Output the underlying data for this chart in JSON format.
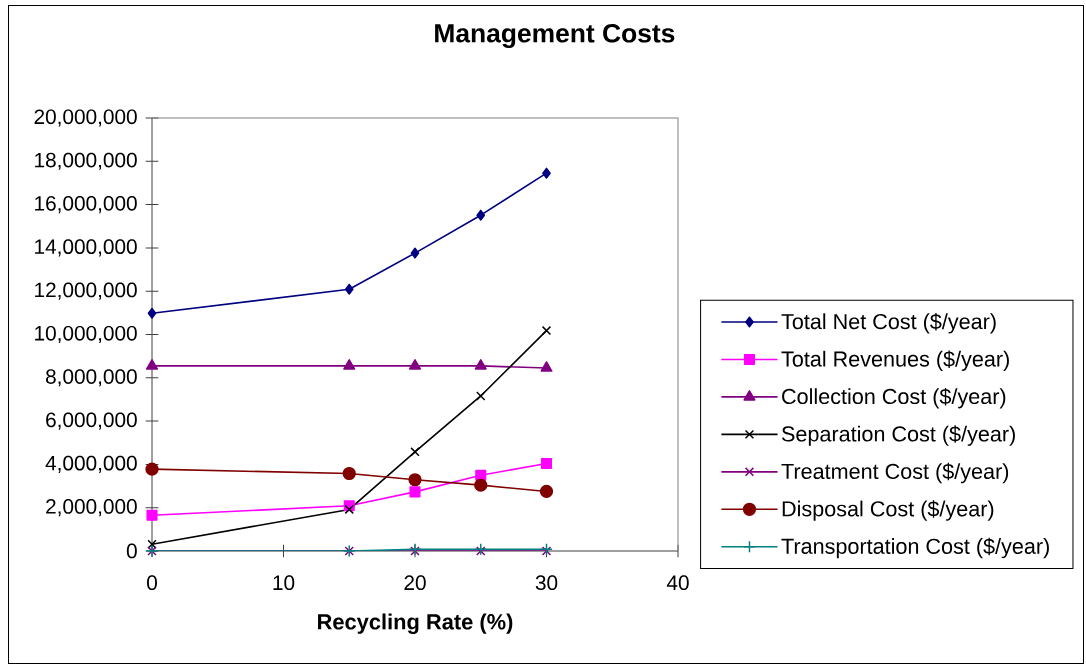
{
  "chart_data": {
    "type": "line",
    "title": "Management Costs",
    "xlabel": "Recycling Rate (%)",
    "x": [
      0,
      15,
      20,
      25,
      30
    ],
    "xlim": [
      0,
      40
    ],
    "xticks": [
      0,
      10,
      20,
      30,
      40
    ],
    "ylim": [
      0,
      20000000
    ],
    "yticks": [
      0,
      {
        "value": 2000000,
        "label": "2,000,000"
      },
      {
        "value": 4000000,
        "label": "4,000,000"
      },
      {
        "value": 6000000,
        "label": "6,000,000"
      },
      {
        "value": 8000000,
        "label": "8,000,000"
      },
      {
        "value": 10000000,
        "label": "10,000,000"
      },
      {
        "value": 12000000,
        "label": "12,000,000"
      },
      {
        "value": 14000000,
        "label": "14,000,000"
      },
      {
        "value": 16000000,
        "label": "16,000,000"
      },
      {
        "value": 18000000,
        "label": "18,000,000"
      },
      {
        "value": 20000000,
        "label": "20,000,000"
      }
    ],
    "legend": "right",
    "line_style": "solid",
    "series": [
      {
        "name": "Total Net Cost ($/year)",
        "color": "#000080",
        "marker": "diamond",
        "values": [
          10980000,
          12090000,
          13760000,
          15510000,
          17450000
        ]
      },
      {
        "name": "Total Revenues ($/year)",
        "color": "#ff00ff",
        "marker": "square",
        "values": [
          1650000,
          2090000,
          2730000,
          3500000,
          4040000
        ]
      },
      {
        "name": "Collection Cost ($/year)",
        "color": "#800080",
        "marker": "triangle",
        "values": [
          8550000,
          8550000,
          8550000,
          8550000,
          8450000
        ]
      },
      {
        "name": "Separation Cost ($/year)",
        "color": "#000000",
        "marker": "cross",
        "values": [
          310000,
          1920000,
          4580000,
          7160000,
          10180000
        ]
      },
      {
        "name": "Treatment Cost ($/year)",
        "color": "#800080",
        "marker": "cross",
        "values": [
          0,
          0,
          0,
          0,
          0
        ]
      },
      {
        "name": "Disposal Cost ($/year)",
        "color": "#800000",
        "marker": "circle",
        "values": [
          3780000,
          3580000,
          3290000,
          3040000,
          2750000
        ]
      },
      {
        "name": "Transportation Cost ($/year)",
        "color": "#008080",
        "marker": "plus",
        "values": [
          0,
          0,
          80000,
          80000,
          80000
        ]
      }
    ]
  }
}
